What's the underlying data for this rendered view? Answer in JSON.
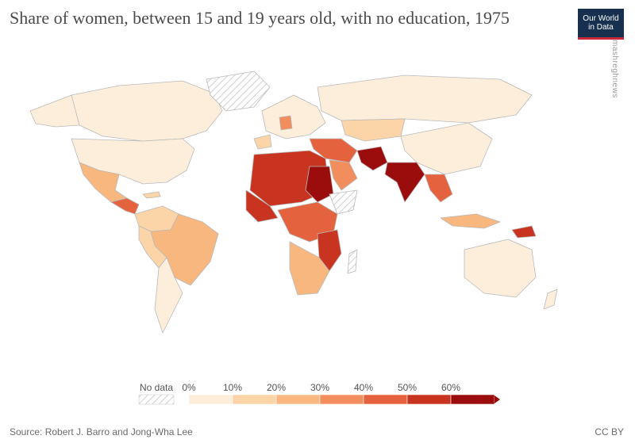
{
  "title": "Share of women, between 15 and 19 years old, with no education, 1975",
  "logo": {
    "line1": "Our World",
    "line2": "in Data"
  },
  "watermark": "mashreghnews",
  "legend": {
    "no_data_label": "No data",
    "ticks": [
      "0%",
      "10%",
      "20%",
      "30%",
      "40%",
      "50%",
      "60%"
    ],
    "colors": [
      "#fdeedb",
      "#fbd5a7",
      "#f8b77f",
      "#f28d5d",
      "#e5623f",
      "#c8341f",
      "#9b0d0d"
    ],
    "ticks_values": [
      0,
      10,
      20,
      30,
      40,
      50,
      60
    ]
  },
  "source": "Source: Robert J. Barro and Jong-Wha Lee",
  "license": "CC BY",
  "colors": {
    "ocean": "#ffffff",
    "border": "#b9b9b9",
    "nodata_hatch": "#cfcfcf"
  }
}
